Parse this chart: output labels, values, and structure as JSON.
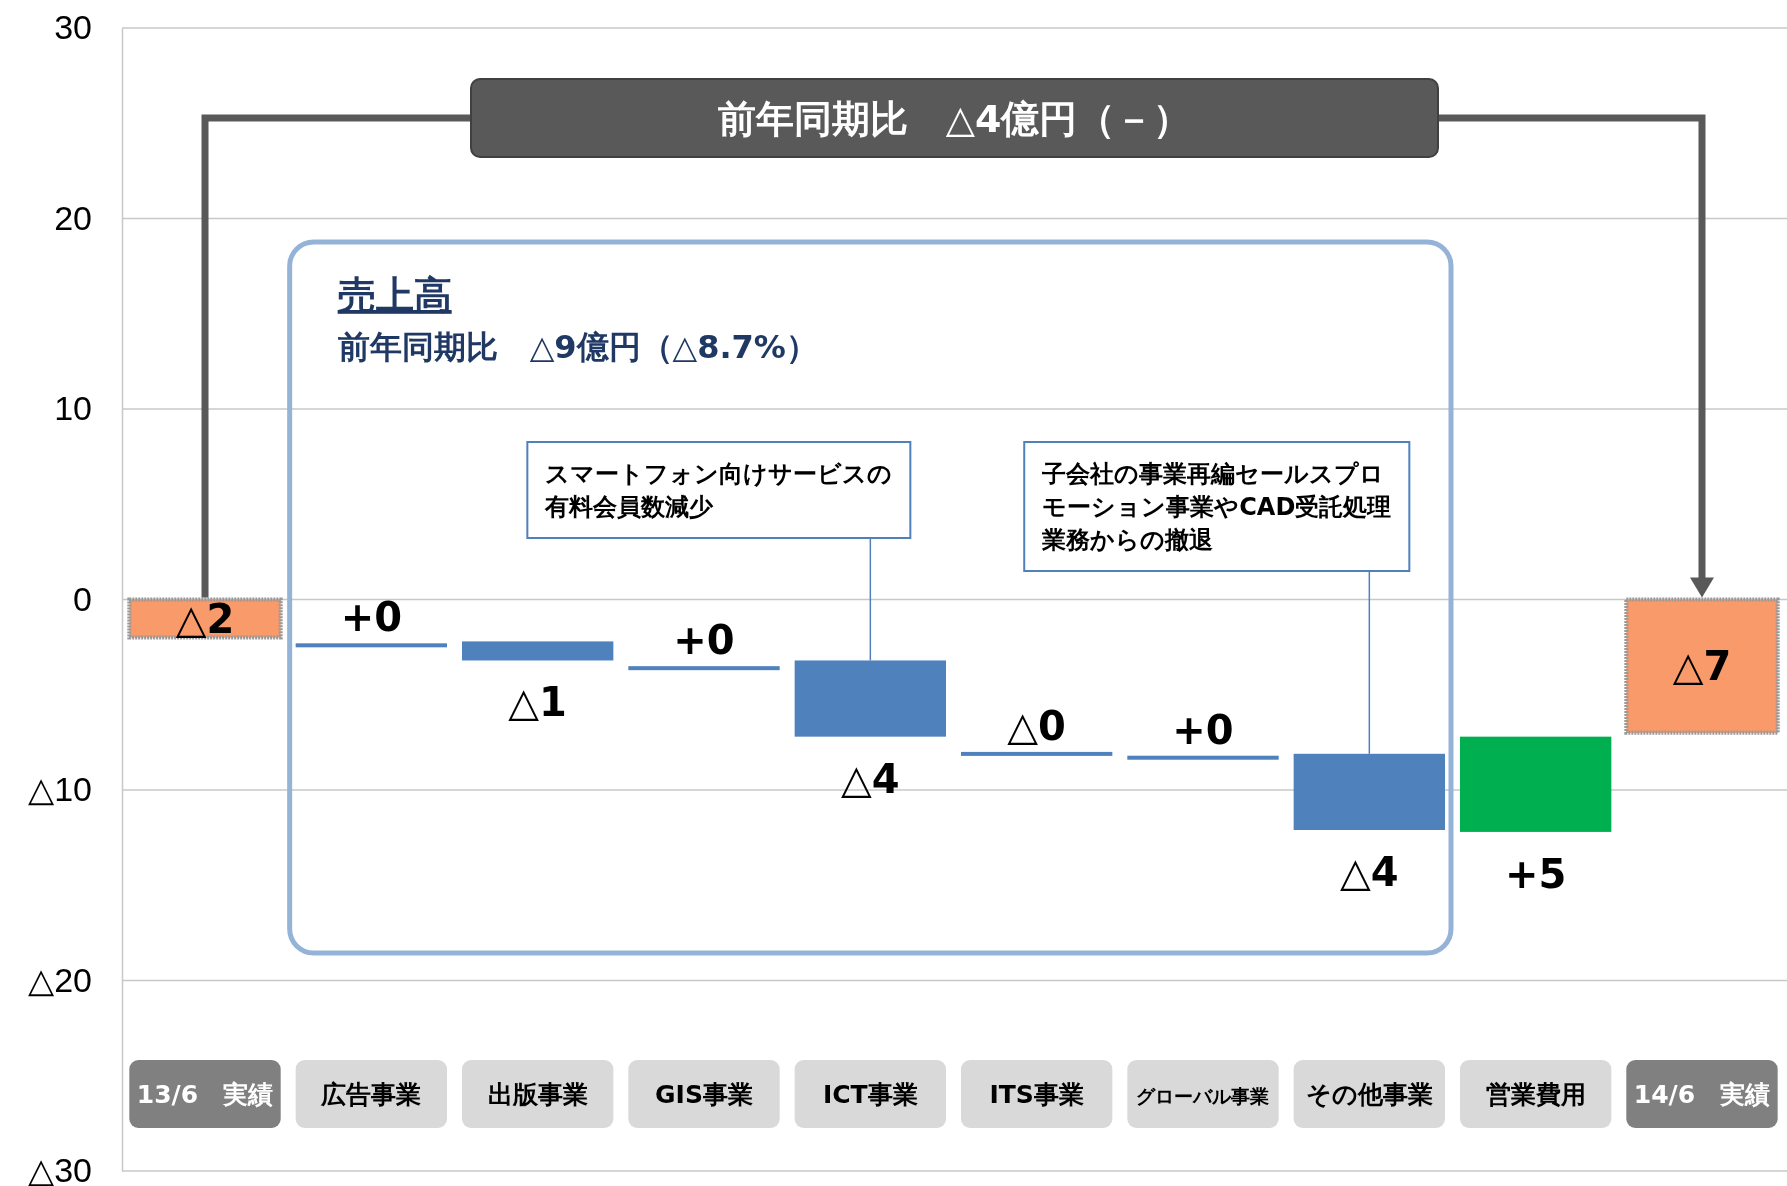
{
  "chart_data": {
    "type": "bar",
    "title": "前年同期比　△4億円（－）",
    "categories": [
      "13/6　実績",
      "広告事業",
      "出版事業",
      "GIS事業",
      "ICT事業",
      "ITS事業",
      "グローバル事業",
      "その他事業",
      "営業費用",
      "14/6　実績"
    ],
    "values": [
      -2,
      0,
      -1,
      0,
      -4,
      0,
      0,
      -4,
      5,
      -7
    ],
    "base": [
      0,
      -2.3,
      -2.2,
      -3.5,
      -3.2,
      -8.0,
      -8.2,
      -8.1,
      -12.2,
      0
    ],
    "colors": [
      "#f99a6b",
      "#4f81bd",
      "#4f81bd",
      "#4f81bd",
      "#4f81bd",
      "#4f81bd",
      "#4f81bd",
      "#4f81bd",
      "#00b050",
      "#f99a6b"
    ],
    "value_labels": [
      "△2",
      "+0",
      "△1",
      "+0",
      "△4",
      "△0",
      "+0",
      "△4",
      "+5",
      "△7"
    ],
    "ylim": [
      -30,
      30
    ],
    "yticks": [
      {
        "value": -30,
        "label": "△30"
      },
      {
        "value": -20,
        "label": "△20"
      },
      {
        "value": -10,
        "label": "△10"
      },
      0,
      10,
      20,
      30
    ],
    "grid": "y",
    "annotations": [
      "売上高",
      "前年同期比　△9億円（△8.7%）",
      {
        "text": "スマートフォン向けサービスの有料会員数減少",
        "x": "ICT事業",
        "y": -3.2
      },
      {
        "text": "子会社の事業再編セールスプロモーション事業やCAD受託処理業務からの撤退",
        "x": "その他事業",
        "y": -8.1
      }
    ]
  }
}
